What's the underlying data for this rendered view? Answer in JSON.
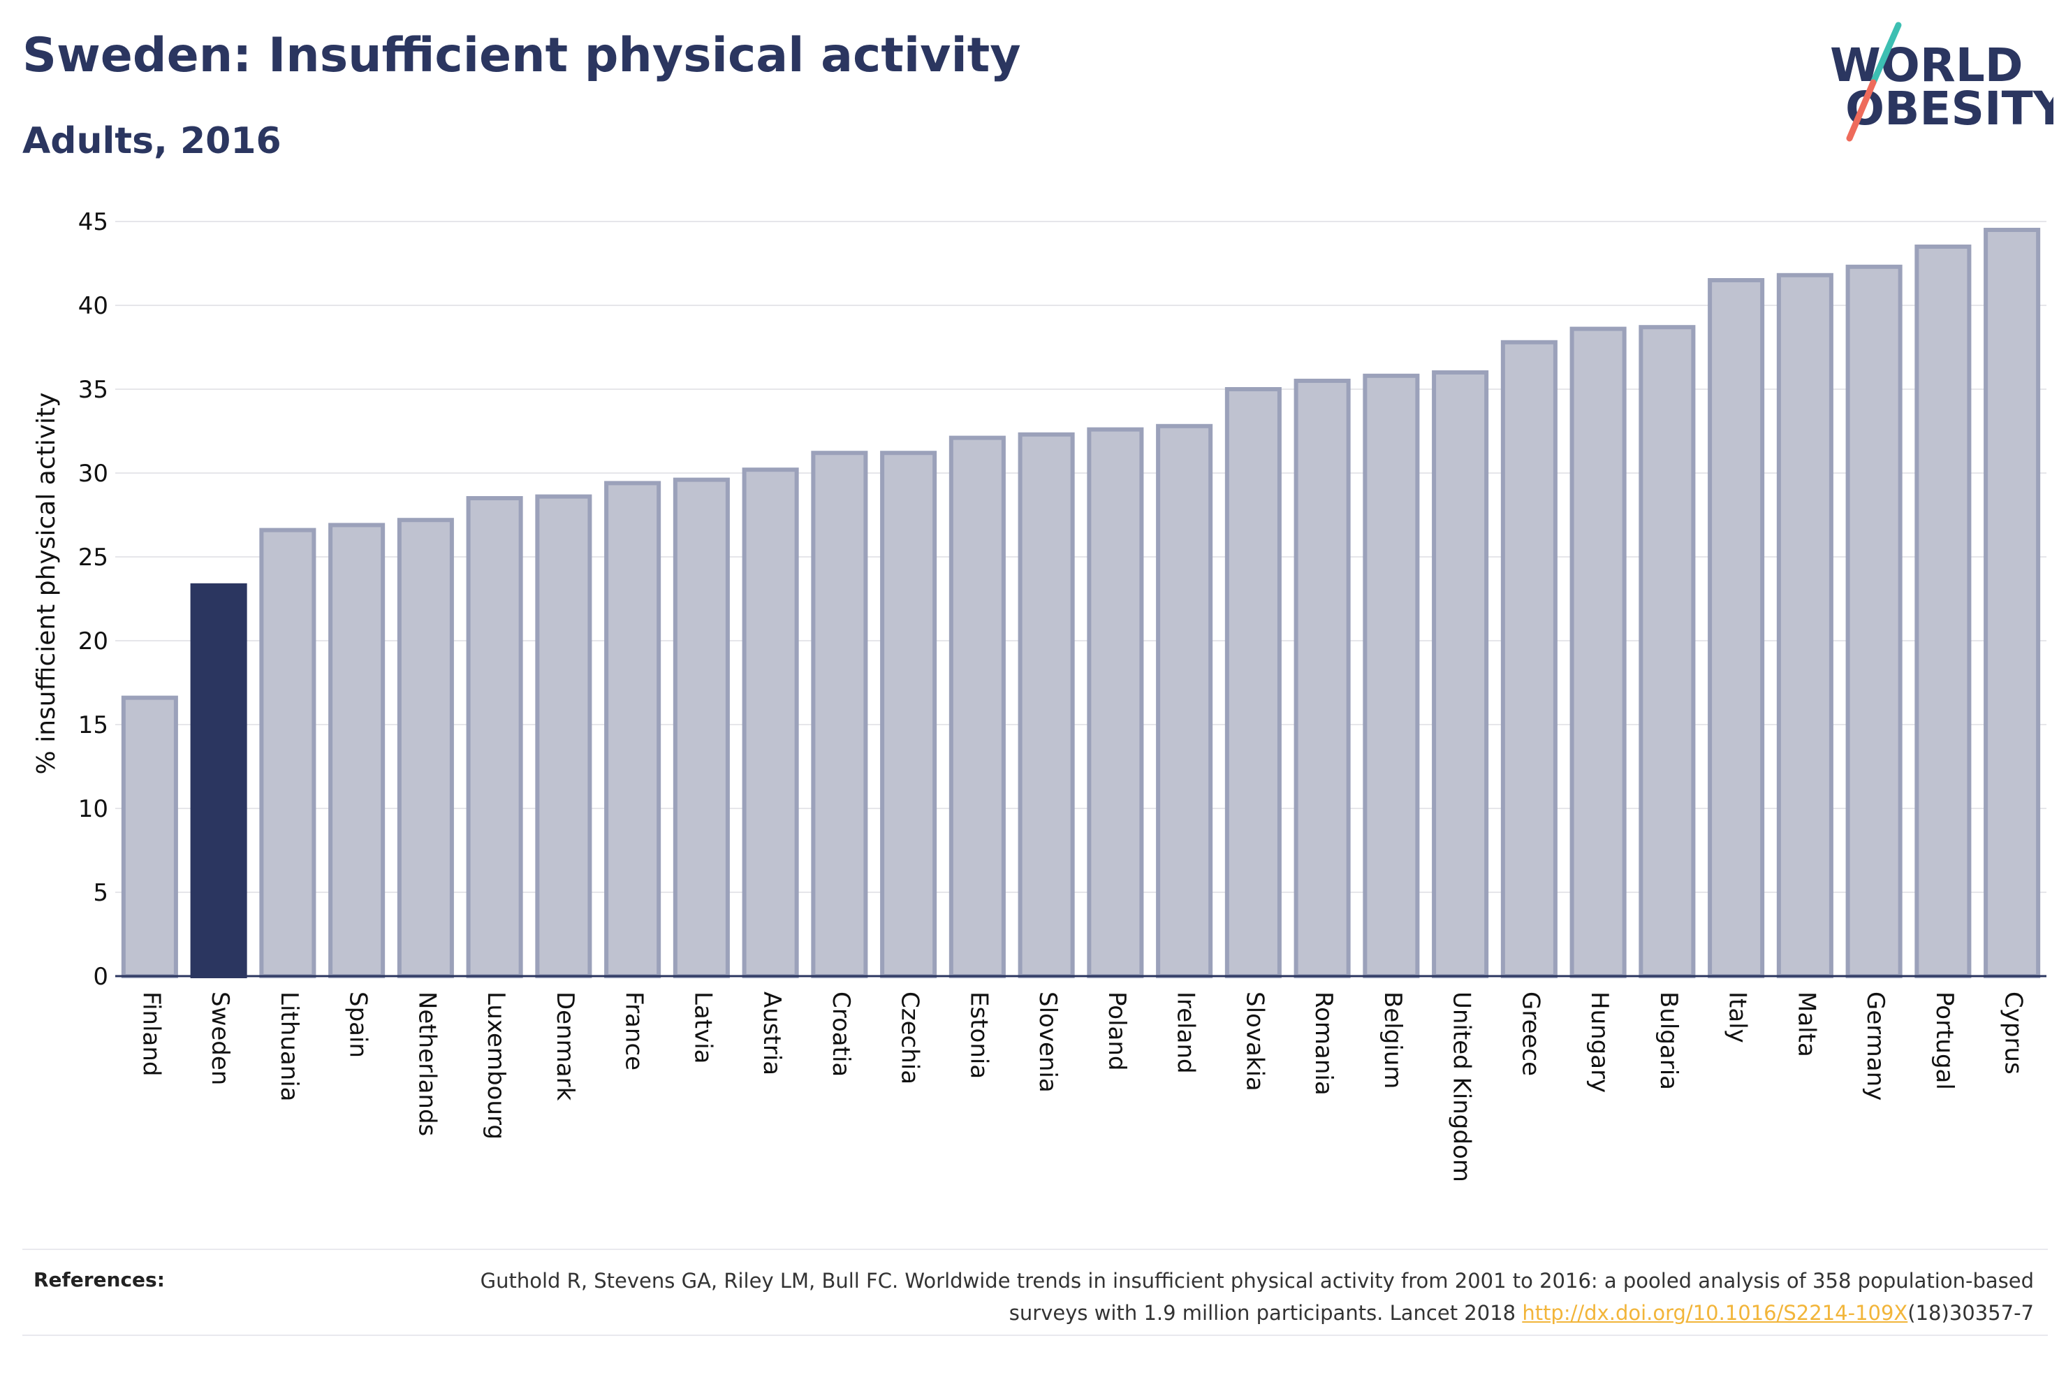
{
  "title": "Sweden: Insufficient physical activity",
  "subtitle": "Adults, 2016",
  "logo": {
    "line1": "WORLD",
    "line2": "OBESITY",
    "colors": {
      "text": "#2b3660",
      "slash_top": "#3dbfb2",
      "slash_bottom": "#ee6b5b"
    }
  },
  "colors": {
    "highlight": "#2b3660",
    "bar_fill": "#bfc2d0",
    "bar_stroke": "#9ba1ba",
    "grid": "#e6e6ea",
    "axis": "#2b3660"
  },
  "chart_data": {
    "type": "bar",
    "highlight": "Sweden",
    "ylabel": "% insufficient physical activity",
    "xlabel": "",
    "ylim": [
      0,
      45
    ],
    "yticks": [
      0,
      5,
      10,
      15,
      20,
      25,
      30,
      35,
      40,
      45
    ],
    "grid": true,
    "categories": [
      "Finland",
      "Sweden",
      "Lithuania",
      "Spain",
      "Netherlands",
      "Luxembourg",
      "Denmark",
      "France",
      "Latvia",
      "Austria",
      "Croatia",
      "Czechia",
      "Estonia",
      "Slovenia",
      "Poland",
      "Ireland",
      "Slovakia",
      "Romania",
      "Belgium",
      "United Kingdom",
      "Greece",
      "Hungary",
      "Bulgaria",
      "Italy",
      "Malta",
      "Germany",
      "Portugal",
      "Cyprus"
    ],
    "values": [
      16.6,
      23.3,
      26.6,
      26.9,
      27.2,
      28.5,
      28.6,
      29.4,
      29.6,
      30.2,
      31.2,
      31.2,
      32.1,
      32.3,
      32.6,
      32.8,
      35.0,
      35.5,
      35.8,
      36.0,
      37.8,
      38.6,
      38.7,
      41.5,
      41.8,
      42.3,
      43.5,
      44.5
    ]
  },
  "references": {
    "label": "References:",
    "text_before": "Guthold R, Stevens GA, Riley LM, Bull FC. Worldwide trends in insufficient physical activity from 2001 to 2016: a pooled analysis of 358 population-based surveys with 1.9 million participants. Lancet 2018 ",
    "link": "http://dx.doi.org/10.1016/S2214-109X",
    "text_after": "(18)30357-7"
  }
}
